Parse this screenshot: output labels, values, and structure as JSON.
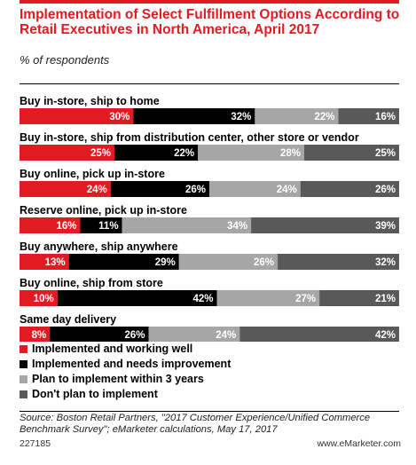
{
  "header": {
    "title": "Implementation of Select Fulfillment Options According to Retail Executives in North America, April 2017",
    "subtitle": "% of respondents"
  },
  "colors": {
    "accent": "#e21b22",
    "series": [
      "#e21b22",
      "#000000",
      "#a6a6a6",
      "#595959"
    ]
  },
  "chart_data": {
    "type": "bar",
    "orientation": "horizontal",
    "stacked": true,
    "title": "Implementation of Select Fulfillment Options According to Retail Executives in North America, April 2017",
    "subtitle": "% of respondents",
    "categories": [
      "Buy in-store, ship to home",
      "Buy in-store, ship from distribution center, other store or vendor",
      "Buy online, pick up in-store",
      "Reserve online, pick up in-store",
      "Buy anywhere, ship anywhere",
      "Buy online, ship from store",
      "Same day delivery"
    ],
    "series": [
      {
        "name": "Implemented and working well",
        "values": [
          30,
          25,
          24,
          16,
          13,
          10,
          8
        ]
      },
      {
        "name": "Implemented and needs improvement",
        "values": [
          32,
          22,
          26,
          11,
          29,
          42,
          26
        ]
      },
      {
        "name": "Plan to implement within 3 years",
        "values": [
          22,
          28,
          24,
          34,
          26,
          27,
          24
        ]
      },
      {
        "name": "Don't plan to implement",
        "values": [
          16,
          25,
          26,
          39,
          32,
          21,
          42
        ]
      }
    ],
    "value_suffix": "%",
    "xlim": [
      0,
      100
    ],
    "legend_position": "bottom-left",
    "grid": false
  },
  "footer": {
    "source": "Source: Boston Retail Partners, \"2017 Customer Experience/Unified Commerce Benchmark Survey\"; eMarketer calculations, May 17, 2017",
    "chart_id": "227185",
    "brand": "www.eMarketer.com"
  }
}
